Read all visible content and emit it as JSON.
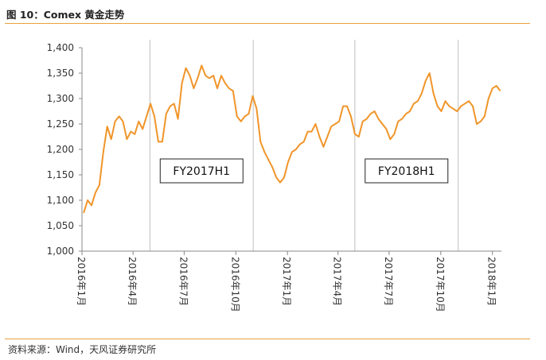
{
  "figure": {
    "title": "图 10：Comex 黄金走势",
    "source": "资料来源：Wind，天风证券研究所"
  },
  "colors": {
    "line": "#f0952a",
    "rule": "#e8a23c",
    "divider": "#bfbfbf",
    "axis": "#888888"
  },
  "chart_data": {
    "type": "line",
    "title": "",
    "xlabel": "",
    "ylabel": "",
    "ylim": [
      1000,
      1400
    ],
    "yticks": [
      "1,000",
      "1,050",
      "1,100",
      "1,150",
      "1,200",
      "1,250",
      "1,300",
      "1,350",
      "1,400"
    ],
    "ytick_values": [
      1000,
      1050,
      1100,
      1150,
      1200,
      1250,
      1300,
      1350,
      1400
    ],
    "xticks": [
      "2016年1月",
      "2016年4月",
      "2016年7月",
      "2016年10月",
      "2017年1月",
      "2017年4月",
      "2017年7月",
      "2017年10月",
      "2018年1月"
    ],
    "grid": false,
    "dividers": [
      "2016年5月",
      "2016年11月",
      "2017年5月",
      "2017年11月"
    ],
    "annotations": [
      {
        "text": "FY2017H1",
        "at": "2016年8月"
      },
      {
        "text": "FY2018H1",
        "at": "2017年8月"
      }
    ],
    "series": [
      {
        "x": [
          "2016-01-04",
          "2016-01-11",
          "2016-01-18",
          "2016-01-25",
          "2016-02-01",
          "2016-02-08",
          "2016-02-15",
          "2016-02-22",
          "2016-02-29",
          "2016-03-07",
          "2016-03-14",
          "2016-03-21",
          "2016-03-28",
          "2016-04-04",
          "2016-04-11",
          "2016-04-18",
          "2016-04-25",
          "2016-05-02",
          "2016-05-09",
          "2016-05-16",
          "2016-05-23",
          "2016-05-30",
          "2016-06-06",
          "2016-06-13",
          "2016-06-20",
          "2016-06-27",
          "2016-07-04",
          "2016-07-11",
          "2016-07-18",
          "2016-07-25",
          "2016-08-01",
          "2016-08-08",
          "2016-08-15",
          "2016-08-22",
          "2016-08-29",
          "2016-09-05",
          "2016-09-12",
          "2016-09-19",
          "2016-09-26",
          "2016-10-03",
          "2016-10-10",
          "2016-10-17",
          "2016-10-24",
          "2016-10-31",
          "2016-11-07",
          "2016-11-14",
          "2016-11-21",
          "2016-11-28",
          "2016-12-05",
          "2016-12-12",
          "2016-12-19",
          "2016-12-26",
          "2017-01-02",
          "2017-01-09",
          "2017-01-16",
          "2017-01-23",
          "2017-01-30",
          "2017-02-06",
          "2017-02-13",
          "2017-02-20",
          "2017-02-27",
          "2017-03-06",
          "2017-03-13",
          "2017-03-20",
          "2017-03-27",
          "2017-04-03",
          "2017-04-10",
          "2017-04-17",
          "2017-04-24",
          "2017-05-01",
          "2017-05-08",
          "2017-05-15",
          "2017-05-22",
          "2017-05-29",
          "2017-06-05",
          "2017-06-12",
          "2017-06-19",
          "2017-06-26",
          "2017-07-03",
          "2017-07-10",
          "2017-07-17",
          "2017-07-24",
          "2017-07-31",
          "2017-08-07",
          "2017-08-14",
          "2017-08-21",
          "2017-08-28",
          "2017-09-04",
          "2017-09-11",
          "2017-09-18",
          "2017-09-25",
          "2017-10-02",
          "2017-10-09",
          "2017-10-16",
          "2017-10-23",
          "2017-10-30",
          "2017-11-06",
          "2017-11-13",
          "2017-11-20",
          "2017-11-27",
          "2017-12-04",
          "2017-12-11",
          "2017-12-18",
          "2017-12-25",
          "2018-01-01",
          "2018-01-08",
          "2018-01-15"
        ],
        "values": [
          1075,
          1100,
          1090,
          1115,
          1130,
          1195,
          1245,
          1220,
          1255,
          1265,
          1255,
          1220,
          1235,
          1230,
          1255,
          1240,
          1265,
          1290,
          1265,
          1215,
          1215,
          1270,
          1285,
          1290,
          1260,
          1330,
          1360,
          1345,
          1320,
          1340,
          1365,
          1345,
          1340,
          1345,
          1320,
          1345,
          1330,
          1320,
          1315,
          1265,
          1255,
          1265,
          1270,
          1305,
          1280,
          1215,
          1195,
          1180,
          1165,
          1145,
          1135,
          1145,
          1175,
          1195,
          1200,
          1210,
          1215,
          1235,
          1235,
          1250,
          1225,
          1205,
          1225,
          1245,
          1250,
          1255,
          1285,
          1285,
          1265,
          1230,
          1225,
          1255,
          1260,
          1270,
          1275,
          1260,
          1250,
          1240,
          1220,
          1230,
          1255,
          1260,
          1270,
          1275,
          1290,
          1295,
          1310,
          1335,
          1350,
          1310,
          1285,
          1275,
          1295,
          1285,
          1280,
          1275,
          1285,
          1290,
          1295,
          1285,
          1250,
          1255,
          1265,
          1300,
          1320,
          1325,
          1315
        ]
      }
    ]
  }
}
